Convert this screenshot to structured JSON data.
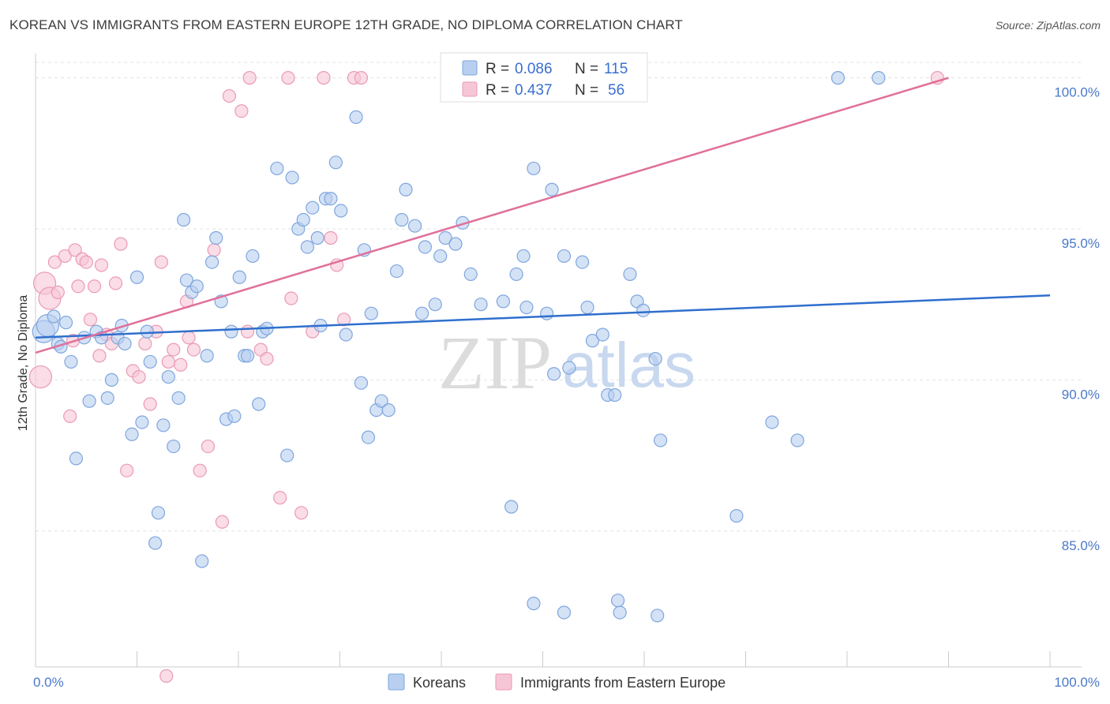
{
  "title": "KOREAN VS IMMIGRANTS FROM EASTERN EUROPE 12TH GRADE, NO DIPLOMA CORRELATION CHART",
  "source": "Source: ZipAtlas.com",
  "watermark": {
    "zip": "ZIP",
    "atlas": "atlas"
  },
  "colors": {
    "korean_fill": "#b8cff0",
    "korean_stroke": "#7fa6de",
    "korean_line": "#2f6fcd",
    "eastern_fill": "#f7c6d6",
    "eastern_stroke": "#eb9ab5",
    "eastern_line": "#e0709a",
    "grid": "#e3e3e3",
    "axis_label": "#4a79c9"
  },
  "legend": {
    "korean": {
      "r_label": "R =",
      "r_value": "0.086",
      "n_label": "N =",
      "n_value": "115"
    },
    "eastern": {
      "r_label": "R =",
      "r_value": "0.437",
      "n_label": "N =",
      "n_value": "56"
    }
  },
  "chart_data": {
    "type": "scatter",
    "ylabel": "12th Grade, No Diploma",
    "xlim": [
      0,
      100
    ],
    "ylim": [
      80.5,
      100.8
    ],
    "x_tick_labels": [
      {
        "value": 0,
        "label": "0.0%"
      },
      {
        "value": 100,
        "label": "100.0%"
      }
    ],
    "y_tick_labels": [
      {
        "value": 100,
        "label": "100.0%"
      },
      {
        "value": 95,
        "label": "95.0%"
      },
      {
        "value": 90,
        "label": "90.0%"
      },
      {
        "value": 85,
        "label": "85.0%"
      }
    ],
    "grid": true,
    "legend_position": "top-center",
    "series": [
      {
        "name": "Koreans",
        "trend": {
          "x": [
            0,
            100
          ],
          "y": [
            91.4,
            92.8
          ]
        },
        "points": [
          [
            0.8,
            91.6
          ],
          [
            1.2,
            91.8
          ],
          [
            1.8,
            92.1
          ],
          [
            2.2,
            91.2
          ],
          [
            2.5,
            91.1
          ],
          [
            3.0,
            91.9
          ],
          [
            3.5,
            90.6
          ],
          [
            4.0,
            87.4
          ],
          [
            4.8,
            91.4
          ],
          [
            5.3,
            89.3
          ],
          [
            6.0,
            91.6
          ],
          [
            6.5,
            91.4
          ],
          [
            7.1,
            89.4
          ],
          [
            7.5,
            90.0
          ],
          [
            8.1,
            91.4
          ],
          [
            8.5,
            91.8
          ],
          [
            8.8,
            91.2
          ],
          [
            9.5,
            88.2
          ],
          [
            10.0,
            93.4
          ],
          [
            10.5,
            88.6
          ],
          [
            11.0,
            91.6
          ],
          [
            11.3,
            90.6
          ],
          [
            11.8,
            84.6
          ],
          [
            12.1,
            85.6
          ],
          [
            12.6,
            88.5
          ],
          [
            13.1,
            90.1
          ],
          [
            13.6,
            87.8
          ],
          [
            14.1,
            89.4
          ],
          [
            14.6,
            95.3
          ],
          [
            14.9,
            93.3
          ],
          [
            15.4,
            92.9
          ],
          [
            15.9,
            93.1
          ],
          [
            16.4,
            84.0
          ],
          [
            16.9,
            90.8
          ],
          [
            17.4,
            93.9
          ],
          [
            17.8,
            94.7
          ],
          [
            18.3,
            92.6
          ],
          [
            18.8,
            88.7
          ],
          [
            19.3,
            91.6
          ],
          [
            19.6,
            88.8
          ],
          [
            20.1,
            93.4
          ],
          [
            20.6,
            90.8
          ],
          [
            20.9,
            90.8
          ],
          [
            21.4,
            94.1
          ],
          [
            22.0,
            89.2
          ],
          [
            22.4,
            91.6
          ],
          [
            22.8,
            91.7
          ],
          [
            23.8,
            97.0
          ],
          [
            24.8,
            87.5
          ],
          [
            25.3,
            96.7
          ],
          [
            25.9,
            95.0
          ],
          [
            26.4,
            95.3
          ],
          [
            26.8,
            94.4
          ],
          [
            27.3,
            95.7
          ],
          [
            27.8,
            94.7
          ],
          [
            28.1,
            91.8
          ],
          [
            28.6,
            96.0
          ],
          [
            29.1,
            96.0
          ],
          [
            29.6,
            97.2
          ],
          [
            30.1,
            95.6
          ],
          [
            30.6,
            91.5
          ],
          [
            31.6,
            98.7
          ],
          [
            32.1,
            89.9
          ],
          [
            32.4,
            94.3
          ],
          [
            32.8,
            88.1
          ],
          [
            33.1,
            92.2
          ],
          [
            33.6,
            89.0
          ],
          [
            34.1,
            89.3
          ],
          [
            34.8,
            89.0
          ],
          [
            35.6,
            93.6
          ],
          [
            36.1,
            95.3
          ],
          [
            36.5,
            96.3
          ],
          [
            37.4,
            95.1
          ],
          [
            38.1,
            92.2
          ],
          [
            38.4,
            94.4
          ],
          [
            39.4,
            92.5
          ],
          [
            39.9,
            94.1
          ],
          [
            40.4,
            94.7
          ],
          [
            41.4,
            94.5
          ],
          [
            42.1,
            95.2
          ],
          [
            42.9,
            93.5
          ],
          [
            43.9,
            92.5
          ],
          [
            44.9,
            100.0
          ],
          [
            46.1,
            92.6
          ],
          [
            46.9,
            85.8
          ],
          [
            47.4,
            93.5
          ],
          [
            48.1,
            94.1
          ],
          [
            48.4,
            92.4
          ],
          [
            49.1,
            97.0
          ],
          [
            50.4,
            92.2
          ],
          [
            50.9,
            96.3
          ],
          [
            51.1,
            90.2
          ],
          [
            52.1,
            94.1
          ],
          [
            52.6,
            90.4
          ],
          [
            53.9,
            93.9
          ],
          [
            54.4,
            92.4
          ],
          [
            54.9,
            91.3
          ],
          [
            55.9,
            91.5
          ],
          [
            56.4,
            89.5
          ],
          [
            57.1,
            89.5
          ],
          [
            57.4,
            82.7
          ],
          [
            57.6,
            82.3
          ],
          [
            58.6,
            93.5
          ],
          [
            59.3,
            92.6
          ],
          [
            59.9,
            92.3
          ],
          [
            61.1,
            90.7
          ],
          [
            61.3,
            82.2
          ],
          [
            61.6,
            88.0
          ],
          [
            69.1,
            85.5
          ],
          [
            72.6,
            88.6
          ],
          [
            75.1,
            88.0
          ],
          [
            79.1,
            100.0
          ],
          [
            83.1,
            100.0
          ],
          [
            52.1,
            82.3
          ],
          [
            49.1,
            82.6
          ]
        ]
      },
      {
        "name": "Immigrants from Eastern Europe",
        "trend": {
          "x": [
            0,
            90
          ],
          "y": [
            90.9,
            100.0
          ]
        },
        "points": [
          [
            0.5,
            90.1
          ],
          [
            0.9,
            93.2
          ],
          [
            1.4,
            92.7
          ],
          [
            1.9,
            93.9
          ],
          [
            2.2,
            92.9
          ],
          [
            2.9,
            94.1
          ],
          [
            3.4,
            88.8
          ],
          [
            3.9,
            94.3
          ],
          [
            4.2,
            93.1
          ],
          [
            4.6,
            94.0
          ],
          [
            5.0,
            93.9
          ],
          [
            5.4,
            92.0
          ],
          [
            5.8,
            93.1
          ],
          [
            6.5,
            93.8
          ],
          [
            7.0,
            91.5
          ],
          [
            7.5,
            91.2
          ],
          [
            7.9,
            93.2
          ],
          [
            8.4,
            94.5
          ],
          [
            9.0,
            87.0
          ],
          [
            9.6,
            90.3
          ],
          [
            10.2,
            90.1
          ],
          [
            10.8,
            91.2
          ],
          [
            11.3,
            89.2
          ],
          [
            11.9,
            91.6
          ],
          [
            12.4,
            93.9
          ],
          [
            13.1,
            90.6
          ],
          [
            13.6,
            91.0
          ],
          [
            14.3,
            90.5
          ],
          [
            14.9,
            92.6
          ],
          [
            15.6,
            91.0
          ],
          [
            16.2,
            87.0
          ],
          [
            17.0,
            87.8
          ],
          [
            17.6,
            94.3
          ],
          [
            18.4,
            85.3
          ],
          [
            19.1,
            99.4
          ],
          [
            20.3,
            98.9
          ],
          [
            21.1,
            100.0
          ],
          [
            22.2,
            91.0
          ],
          [
            22.8,
            90.7
          ],
          [
            24.1,
            86.1
          ],
          [
            25.2,
            92.7
          ],
          [
            26.2,
            85.6
          ],
          [
            27.3,
            91.6
          ],
          [
            28.4,
            100.0
          ],
          [
            29.1,
            94.7
          ],
          [
            29.7,
            93.8
          ],
          [
            30.4,
            92.0
          ],
          [
            31.4,
            100.0
          ],
          [
            32.1,
            100.0
          ],
          [
            88.9,
            100.0
          ],
          [
            12.9,
            80.2
          ],
          [
            24.9,
            100.0
          ],
          [
            20.9,
            91.6
          ],
          [
            15.1,
            91.4
          ],
          [
            6.3,
            90.8
          ],
          [
            3.7,
            91.3
          ]
        ]
      }
    ]
  },
  "bottom_legend": [
    {
      "label": "Koreans"
    },
    {
      "label": "Immigrants from Eastern Europe"
    }
  ]
}
